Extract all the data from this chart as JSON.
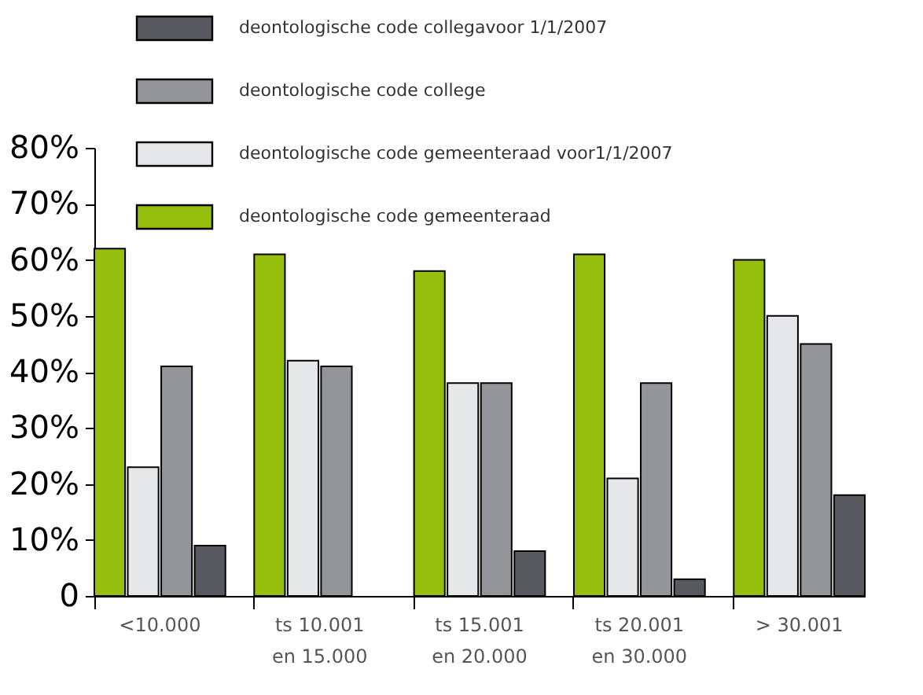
{
  "chart_data": {
    "type": "bar",
    "categories": [
      "<10.000",
      "ts 10.001\nen 15.000",
      "ts 15.001\nen 20.000",
      "ts 20.001\nen 30.000",
      "> 30.001"
    ],
    "series": [
      {
        "name": "deontologische code gemeenteraad",
        "color": "#96bf0d",
        "values": [
          62,
          61,
          58,
          61,
          60
        ]
      },
      {
        "name": "deontologische code gemeenteraad voor1/1/2007",
        "color": "#e6e7e9",
        "values": [
          23,
          42,
          38,
          21,
          50
        ]
      },
      {
        "name": "deontologische code college",
        "color": "#939598",
        "values": [
          41,
          41,
          38,
          38,
          45
        ]
      },
      {
        "name": "deontologische code collegavoor 1/1/2007",
        "color": "#58595e",
        "values": [
          9,
          0,
          8,
          3,
          18
        ]
      }
    ],
    "ylim": [
      0,
      80
    ],
    "yticks": [
      0,
      {
        "value": 10,
        "label": "10%"
      },
      {
        "value": 20,
        "label": "20%"
      },
      {
        "value": 30,
        "label": "30%"
      },
      {
        "value": 40,
        "label": "40%"
      },
      {
        "value": 50,
        "label": "50%"
      },
      {
        "value": 60,
        "label": "60%"
      },
      {
        "value": 70,
        "label": "70%"
      },
      {
        "value": 80,
        "label": "80%"
      }
    ],
    "grid": false,
    "legend": "top"
  }
}
